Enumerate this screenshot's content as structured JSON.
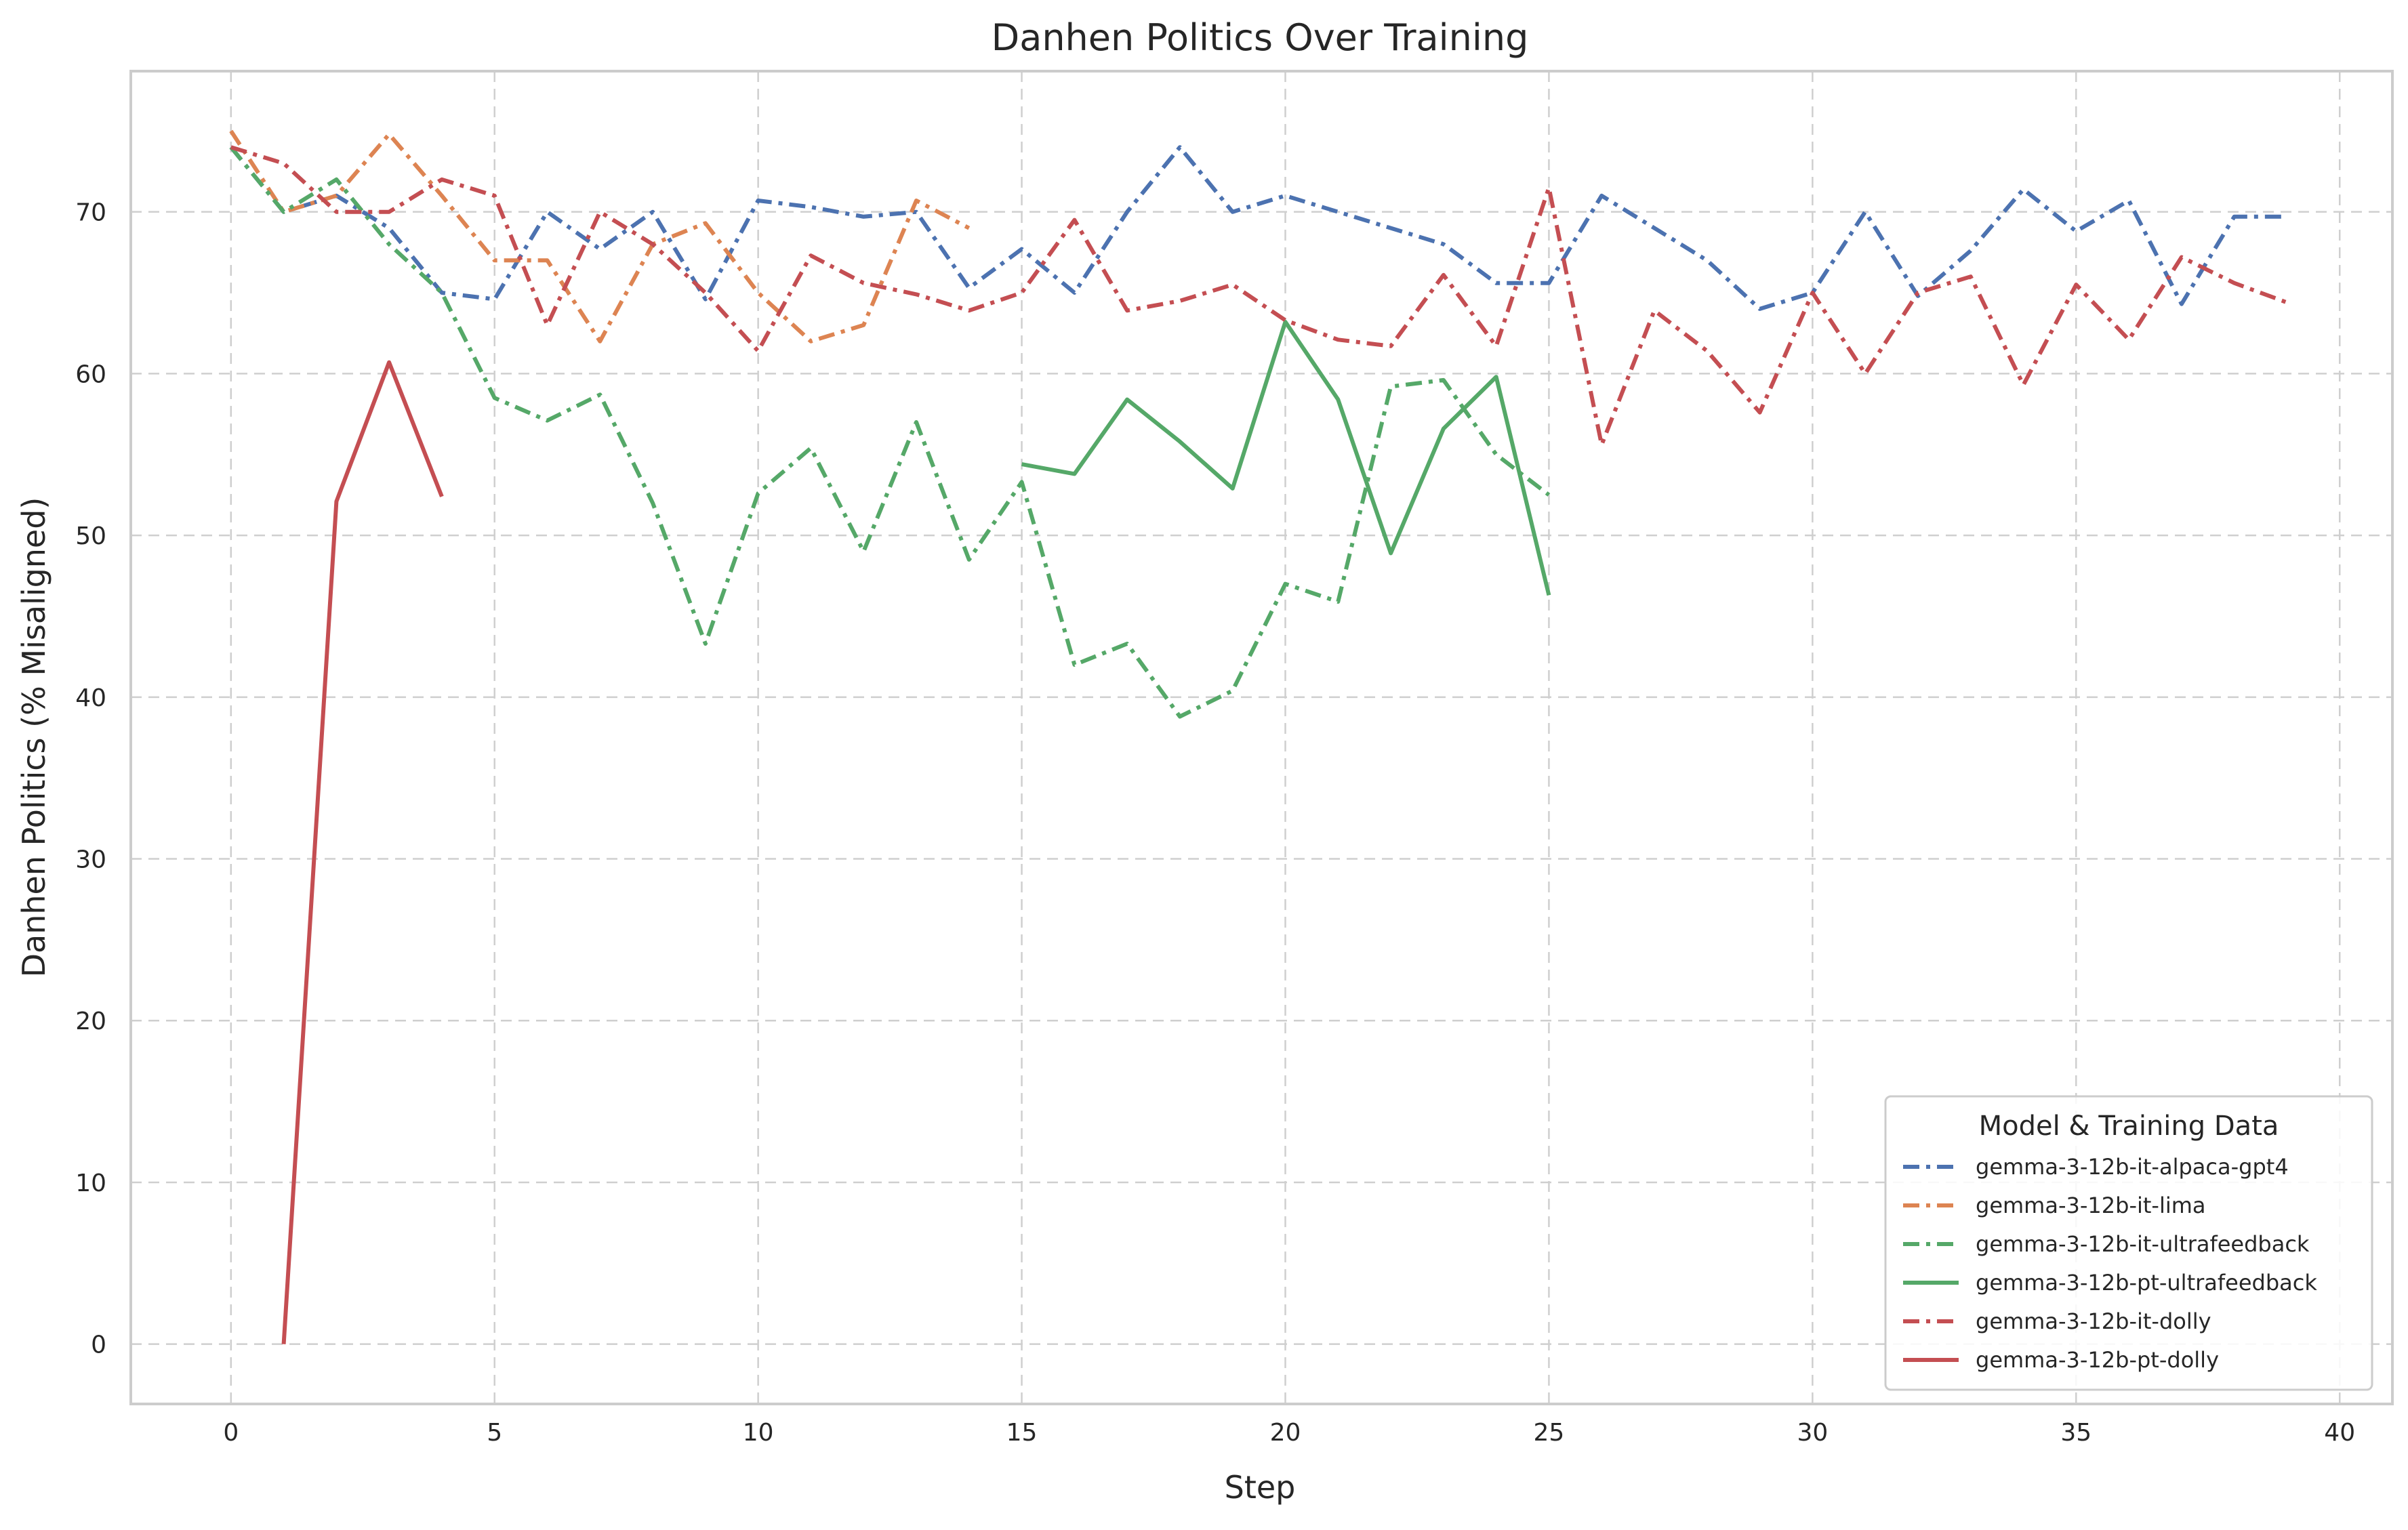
{
  "chart_data": {
    "type": "line",
    "title": "Danhen Politics Over Training",
    "xlabel": "Step",
    "ylabel": "Danhen Politics (% Misaligned)",
    "xlim": [
      -1.9,
      41.0
    ],
    "ylim": [
      -3.7,
      78.7
    ],
    "xticks": [
      0,
      5,
      10,
      15,
      20,
      25,
      30,
      35,
      40
    ],
    "yticks": [
      0,
      10,
      20,
      30,
      40,
      50,
      60,
      70
    ],
    "grid": true,
    "legend": {
      "title": "Model & Training Data",
      "position": "bottom-right"
    },
    "series": [
      {
        "name": "gemma-3-12b-it-alpaca-gpt4",
        "color": "#4c72b0",
        "style": "dashdot",
        "x": [
          0,
          1,
          2,
          3,
          4,
          5,
          6,
          7,
          8,
          9,
          10,
          11,
          12,
          13,
          14,
          15,
          16,
          17,
          18,
          19,
          20,
          21,
          22,
          23,
          24,
          25,
          26,
          27,
          28,
          29,
          30,
          31,
          32,
          33,
          34,
          35,
          36,
          37,
          38,
          39
        ],
        "y": [
          74.0,
          70.0,
          71.0,
          69.0,
          65.0,
          64.6,
          70.0,
          67.7,
          70.0,
          64.6,
          70.7,
          70.3,
          69.7,
          70.0,
          65.3,
          67.7,
          65.0,
          70.0,
          74.0,
          70.0,
          71.0,
          70.0,
          69.0,
          68.0,
          65.6,
          65.6,
          71.0,
          69.0,
          67.0,
          64.0,
          65.0,
          70.0,
          64.8,
          67.6,
          71.4,
          68.8,
          70.7,
          64.3,
          69.7,
          69.7
        ]
      },
      {
        "name": "gemma-3-12b-it-lima",
        "color": "#dd8452",
        "style": "dashdot",
        "x": [
          0,
          1,
          2,
          3,
          4,
          5,
          6,
          7,
          8,
          9,
          10,
          11,
          12,
          13,
          14
        ],
        "y": [
          75.0,
          70.0,
          71.0,
          74.8,
          71.0,
          67.0,
          67.0,
          62.0,
          68.0,
          69.3,
          65.0,
          62.0,
          63.0,
          70.7,
          69.0
        ]
      },
      {
        "name": "gemma-3-12b-it-ultrafeedback",
        "color": "#55a868",
        "style": "dashdot",
        "x": [
          0,
          1,
          2,
          3,
          4,
          5,
          6,
          7,
          8,
          9,
          10,
          11,
          12,
          13,
          14,
          15,
          16,
          17,
          18,
          19,
          20,
          21,
          22,
          23,
          24,
          25
        ],
        "y": [
          74.0,
          70.0,
          72.0,
          68.0,
          65.0,
          58.5,
          57.1,
          58.7,
          52.0,
          43.3,
          52.6,
          55.4,
          49.0,
          57.0,
          48.5,
          53.3,
          42.0,
          43.3,
          38.8,
          40.4,
          47.0,
          45.9,
          59.2,
          59.6,
          55.0,
          52.5
        ]
      },
      {
        "name": "gemma-3-12b-pt-ultrafeedback",
        "color": "#55a868",
        "style": "solid",
        "x": [
          15,
          16,
          17,
          18,
          19,
          20,
          21,
          22,
          23,
          24,
          25
        ],
        "y": [
          54.4,
          53.8,
          58.4,
          55.8,
          52.9,
          63.2,
          58.4,
          48.9,
          56.6,
          59.8,
          46.3
        ]
      },
      {
        "name": "gemma-3-12b-it-dolly",
        "color": "#c44e52",
        "style": "dashdot",
        "x": [
          0,
          1,
          2,
          3,
          4,
          5,
          6,
          7,
          8,
          9,
          10,
          11,
          12,
          13,
          14,
          15,
          16,
          17,
          18,
          19,
          20,
          21,
          22,
          23,
          24,
          25,
          26,
          27,
          28,
          29,
          30,
          31,
          32,
          33,
          34,
          35,
          36,
          37,
          38,
          39
        ],
        "y": [
          74.0,
          73.0,
          70.0,
          70.0,
          72.0,
          71.0,
          63.0,
          70.0,
          68.0,
          65.0,
          61.4,
          67.3,
          65.6,
          64.9,
          63.9,
          65.0,
          69.5,
          63.9,
          64.5,
          65.5,
          63.3,
          62.1,
          61.7,
          66.1,
          61.7,
          71.5,
          55.6,
          63.9,
          61.4,
          57.6,
          65.0,
          60.0,
          65.0,
          66.0,
          59.3,
          65.5,
          62.1,
          67.2,
          65.6,
          64.4
        ]
      },
      {
        "name": "gemma-3-12b-pt-dolly",
        "color": "#c44e52",
        "style": "solid",
        "x": [
          1,
          2,
          3,
          4
        ],
        "y": [
          0.0,
          52.1,
          60.7,
          52.4
        ]
      }
    ]
  }
}
